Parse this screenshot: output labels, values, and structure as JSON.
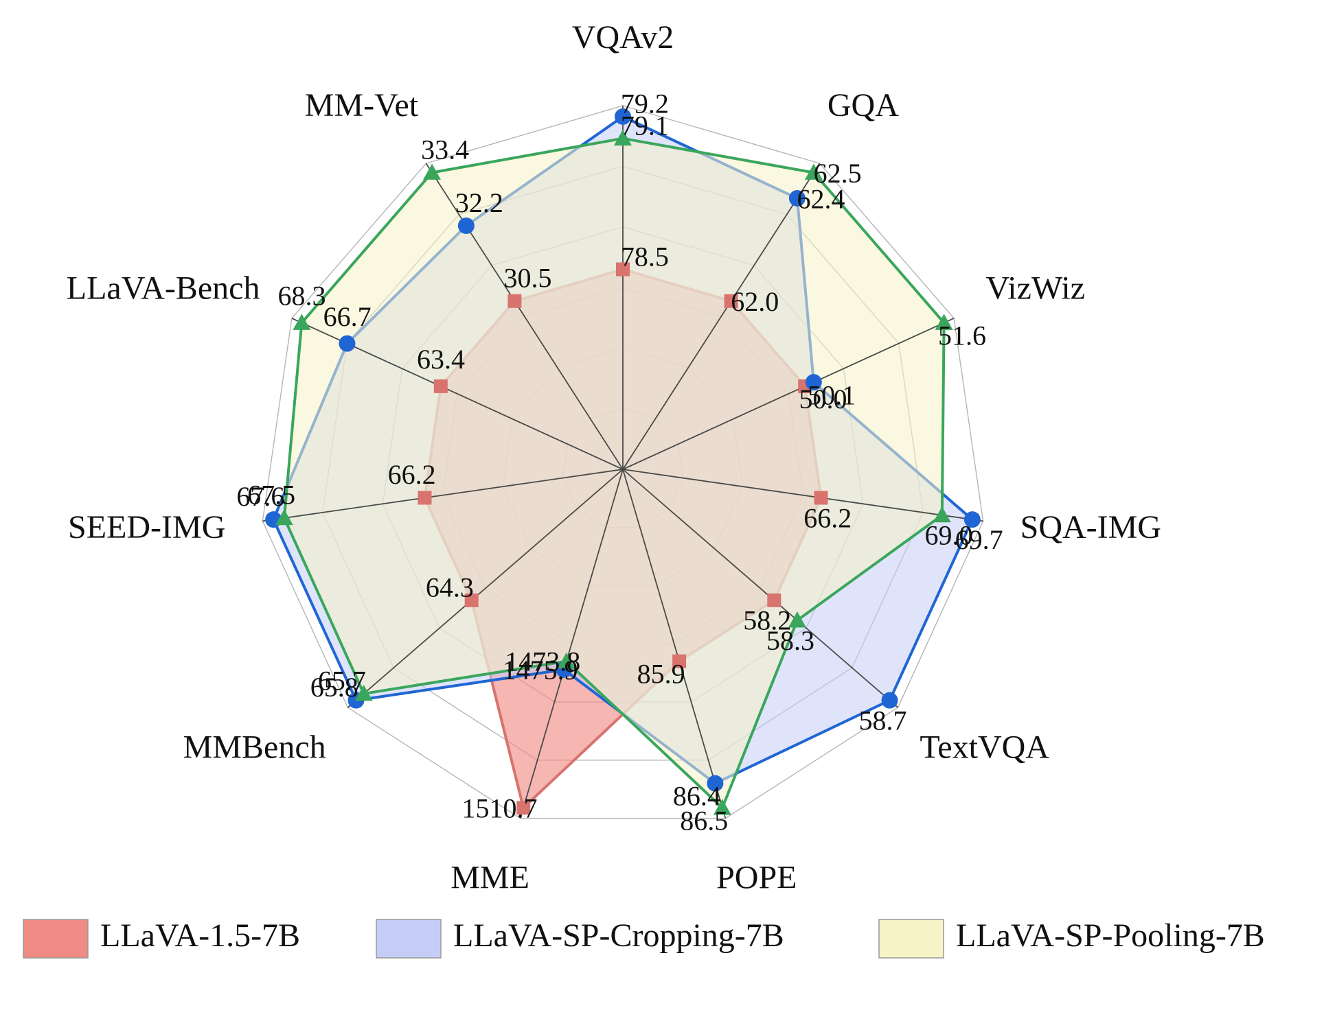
{
  "chart_data": {
    "type": "radar",
    "axes": [
      "VQAv2",
      "GQA",
      "VizWiz",
      "SQA-IMG",
      "TextVQA",
      "POPE",
      "MME",
      "MMBench",
      "SEED-IMG",
      "LLaVA-Bench",
      "MM-Vet"
    ],
    "series": [
      {
        "name": "LLaVA-1.5-7B",
        "values": [
          78.5,
          62.0,
          50.0,
          66.2,
          58.2,
          85.9,
          1510.7,
          64.3,
          66.2,
          63.4,
          30.5
        ],
        "fill": "#f08a84",
        "stroke": "#d9736e",
        "marker_color": "#d9736e",
        "marker": "square"
      },
      {
        "name": "LLaVA-SP-Cropping-7B",
        "values": [
          79.2,
          62.4,
          50.1,
          69.7,
          58.7,
          86.4,
          1475.9,
          65.8,
          67.6,
          66.7,
          32.2
        ],
        "fill": "#c5cdf7",
        "stroke": "#1f66d4",
        "marker_color": "#1f66d4",
        "marker": "circle"
      },
      {
        "name": "LLaVA-SP-Pooling-7B",
        "values": [
          79.1,
          62.5,
          51.6,
          69.0,
          58.3,
          86.5,
          1473.8,
          65.7,
          67.5,
          68.3,
          33.4
        ],
        "fill": "#f6f3c6",
        "stroke": "#3aa65c",
        "marker_color": "#3aa65c",
        "marker": "triangle"
      }
    ],
    "value_labels": [
      [
        "78.5",
        "79.2",
        "79.1"
      ],
      [
        "62.0",
        "62.4",
        "62.5"
      ],
      [
        "50.0",
        "50.1",
        "51.6"
      ],
      [
        "66.2",
        "69.7",
        "69.0"
      ],
      [
        "58.2",
        "58.7",
        "58.3"
      ],
      [
        "85.9",
        "86.4",
        "86.5"
      ],
      [
        "1510.7",
        "1475.9",
        "1473.8"
      ],
      [
        "64.3",
        "65.8",
        "65.7"
      ],
      [
        "66.2",
        "67.6",
        "67.5"
      ],
      [
        "63.4",
        "66.7",
        "68.3"
      ],
      [
        "30.5",
        "32.2",
        "33.4"
      ]
    ],
    "grid": true,
    "legend_position": "bottom"
  }
}
